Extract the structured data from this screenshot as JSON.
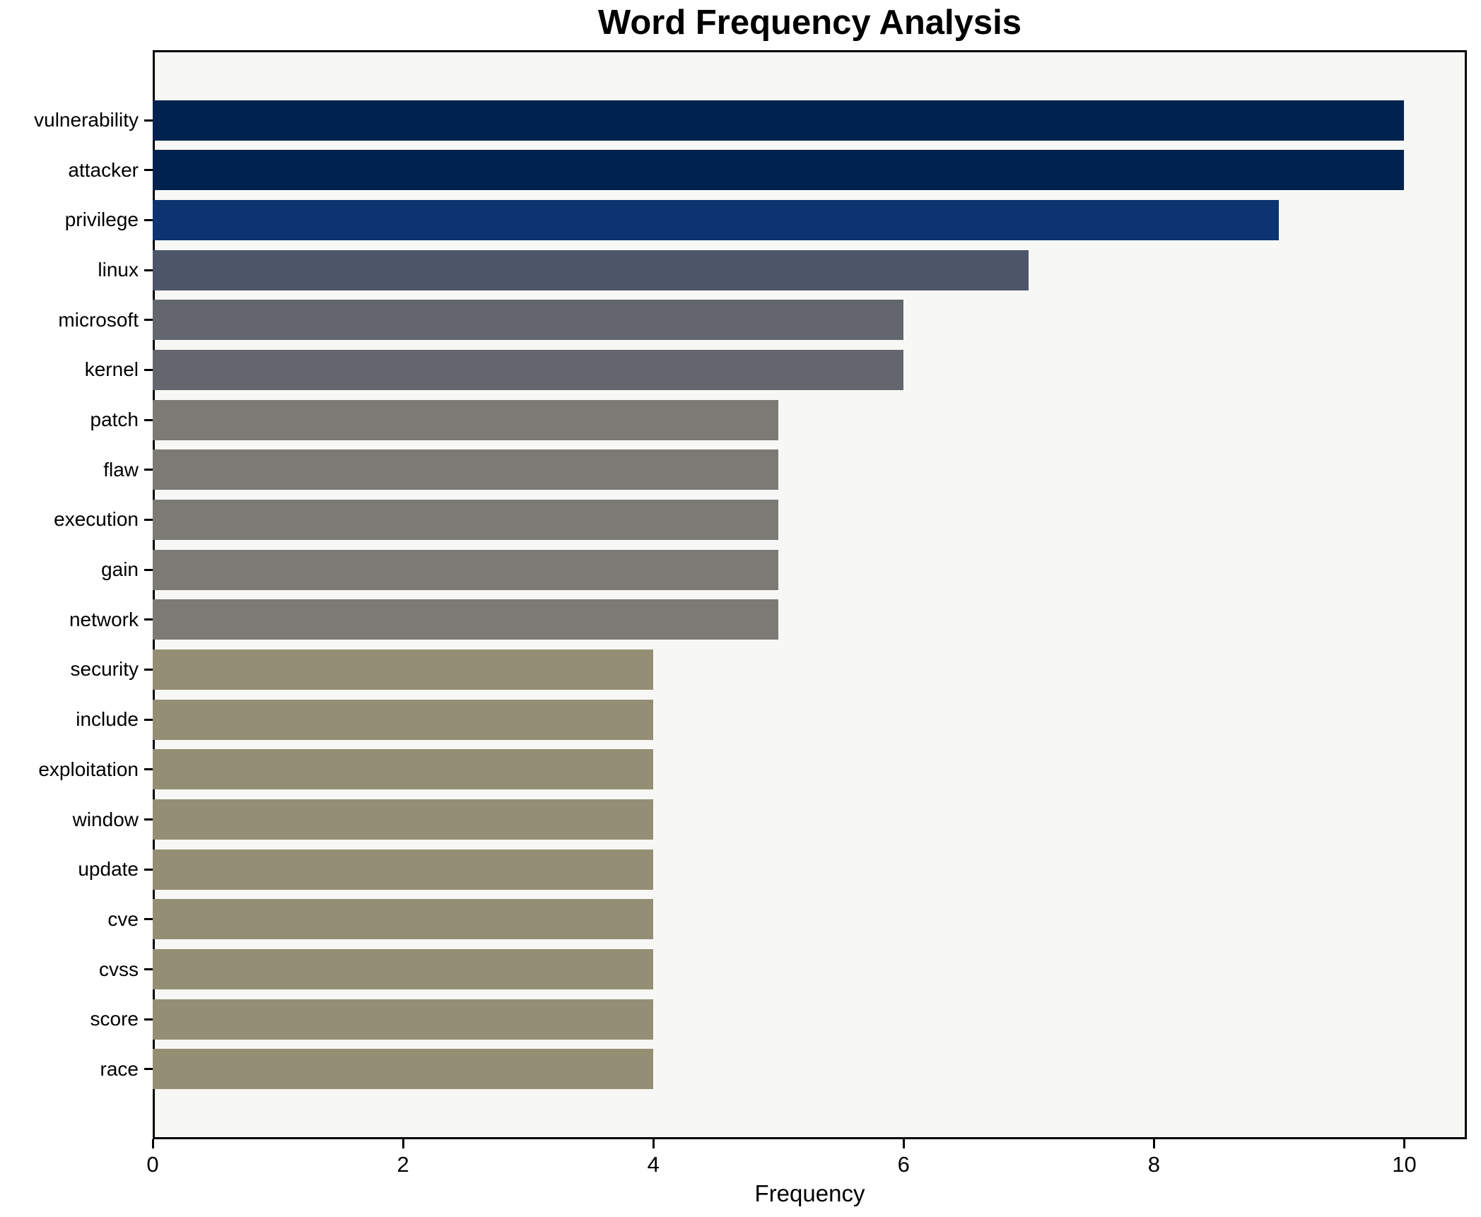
{
  "chart_data": {
    "type": "bar",
    "orientation": "horizontal",
    "title": "Word Frequency Analysis",
    "xlabel": "Frequency",
    "ylabel": "",
    "categories": [
      "vulnerability",
      "attacker",
      "privilege",
      "linux",
      "microsoft",
      "kernel",
      "patch",
      "flaw",
      "execution",
      "gain",
      "network",
      "security",
      "include",
      "exploitation",
      "window",
      "update",
      "cve",
      "cvss",
      "score",
      "race"
    ],
    "values": [
      10,
      10,
      9,
      7,
      6,
      6,
      5,
      5,
      5,
      5,
      5,
      4,
      4,
      4,
      4,
      4,
      4,
      4,
      4,
      4
    ],
    "bar_colors": [
      "#00224e",
      "#00224e",
      "#0d3470",
      "#4d5569",
      "#64666e",
      "#64666e",
      "#7b7a74",
      "#7b7a74",
      "#7b7a74",
      "#7b7a74",
      "#7b7a74",
      "#948e74",
      "#948e74",
      "#948e74",
      "#948e74",
      "#948e74",
      "#948e74",
      "#948e74",
      "#948e74",
      "#948e74"
    ],
    "xticks": [
      "0",
      "2",
      "4",
      "6",
      "8",
      "10"
    ],
    "xtick_values": [
      0,
      2,
      4,
      6,
      8,
      10
    ],
    "xlim": [
      0,
      10.5
    ],
    "grid": false,
    "legend_position": "none",
    "plot_background": "#f7f7f5",
    "figure_background": "#ffffff",
    "spine_color": "#000000",
    "text_color": "#000000"
  }
}
